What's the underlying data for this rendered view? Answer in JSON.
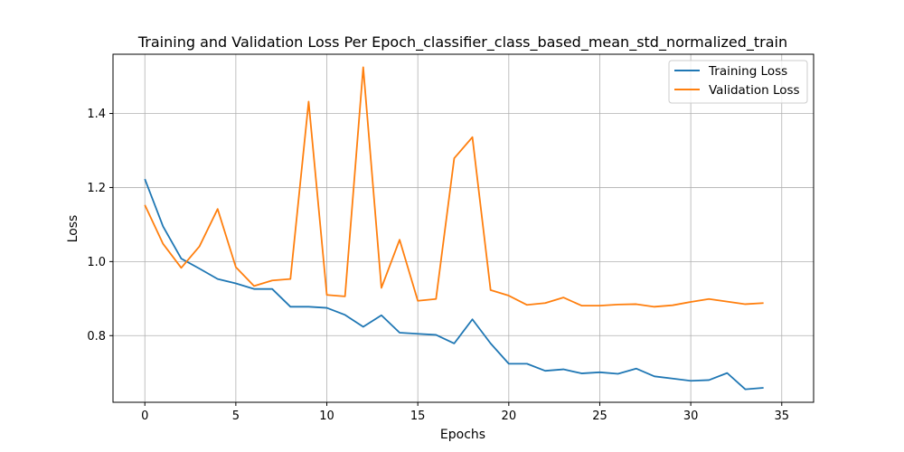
{
  "chart_data": {
    "type": "line",
    "title": "Training and Validation Loss Per Epoch_classifier_class_based_mean_std_normalized_train",
    "xlabel": "Epochs",
    "ylabel": "Loss",
    "xlim": [
      -1.75,
      36.75
    ],
    "ylim": [
      0.62,
      1.56
    ],
    "xticks": [
      0,
      5,
      10,
      15,
      20,
      25,
      30,
      35
    ],
    "yticks": [
      0.8,
      1.0,
      1.2,
      1.4
    ],
    "ytick_labels": [
      "0.8",
      "1.0",
      "1.2",
      "1.4"
    ],
    "grid": true,
    "legend_position": "top-right",
    "x": [
      0,
      1,
      2,
      3,
      4,
      5,
      6,
      7,
      8,
      9,
      10,
      11,
      12,
      13,
      14,
      15,
      16,
      17,
      18,
      19,
      20,
      21,
      22,
      23,
      24,
      25,
      26,
      27,
      28,
      29,
      30,
      31,
      32,
      33,
      34
    ],
    "series": [
      {
        "name": "Training Loss",
        "color": "#1f77b4",
        "values": [
          1.223,
          1.095,
          1.008,
          0.981,
          0.953,
          0.941,
          0.926,
          0.926,
          0.878,
          0.878,
          0.875,
          0.856,
          0.824,
          0.855,
          0.808,
          0.805,
          0.802,
          0.779,
          0.844,
          0.779,
          0.724,
          0.724,
          0.705,
          0.709,
          0.698,
          0.701,
          0.697,
          0.711,
          0.69,
          0.684,
          0.678,
          0.68,
          0.699,
          0.655,
          0.659
        ]
      },
      {
        "name": "Validation Loss",
        "color": "#ff7f0e",
        "values": [
          1.153,
          1.048,
          0.983,
          1.041,
          1.142,
          0.985,
          0.934,
          0.949,
          0.953,
          1.432,
          0.91,
          0.906,
          1.525,
          0.929,
          1.059,
          0.894,
          0.899,
          1.279,
          1.336,
          0.923,
          0.908,
          0.883,
          0.888,
          0.903,
          0.881,
          0.881,
          0.884,
          0.885,
          0.878,
          0.882,
          0.891,
          0.899,
          0.892,
          0.885,
          0.888
        ]
      }
    ]
  }
}
